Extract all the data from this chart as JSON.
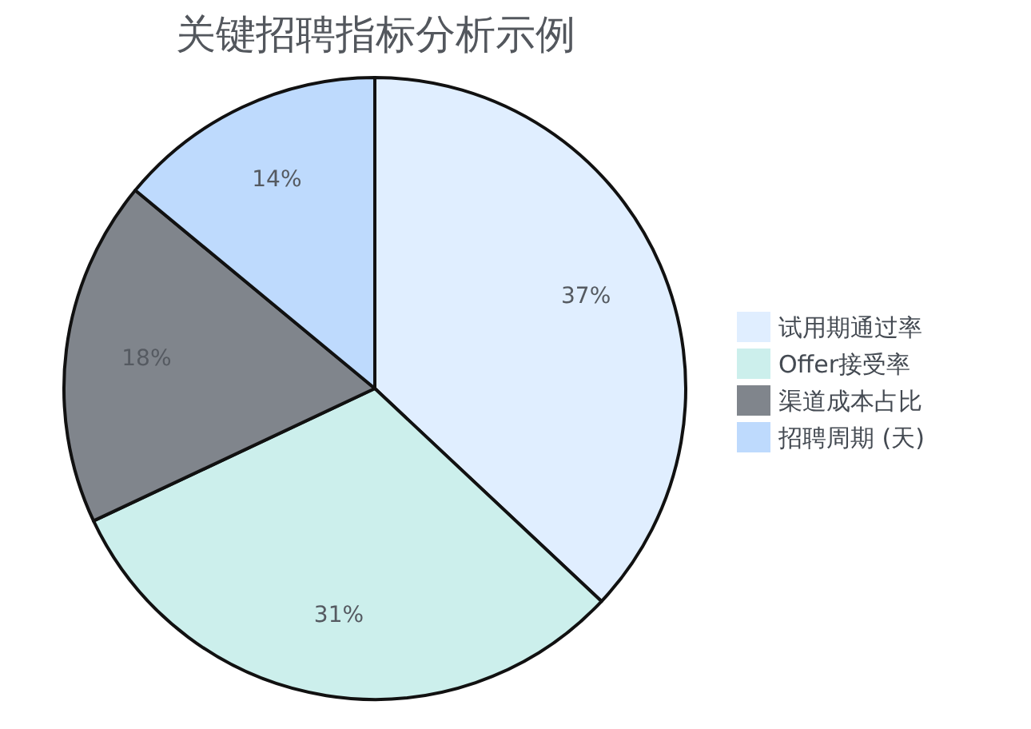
{
  "chart_data": {
    "type": "pie",
    "title": "关键招聘指标分析示例",
    "categories": [
      "试用期通过率",
      "Offer接受率",
      "渠道成本占比",
      "招聘周期 (天)"
    ],
    "values": [
      37,
      31,
      18,
      14
    ],
    "value_labels": [
      "37%",
      "31%",
      "18%",
      "14%"
    ],
    "colors": [
      "#e0eeff",
      "#ccefec",
      "#80858c",
      "#bedafd"
    ],
    "legend": "right"
  }
}
